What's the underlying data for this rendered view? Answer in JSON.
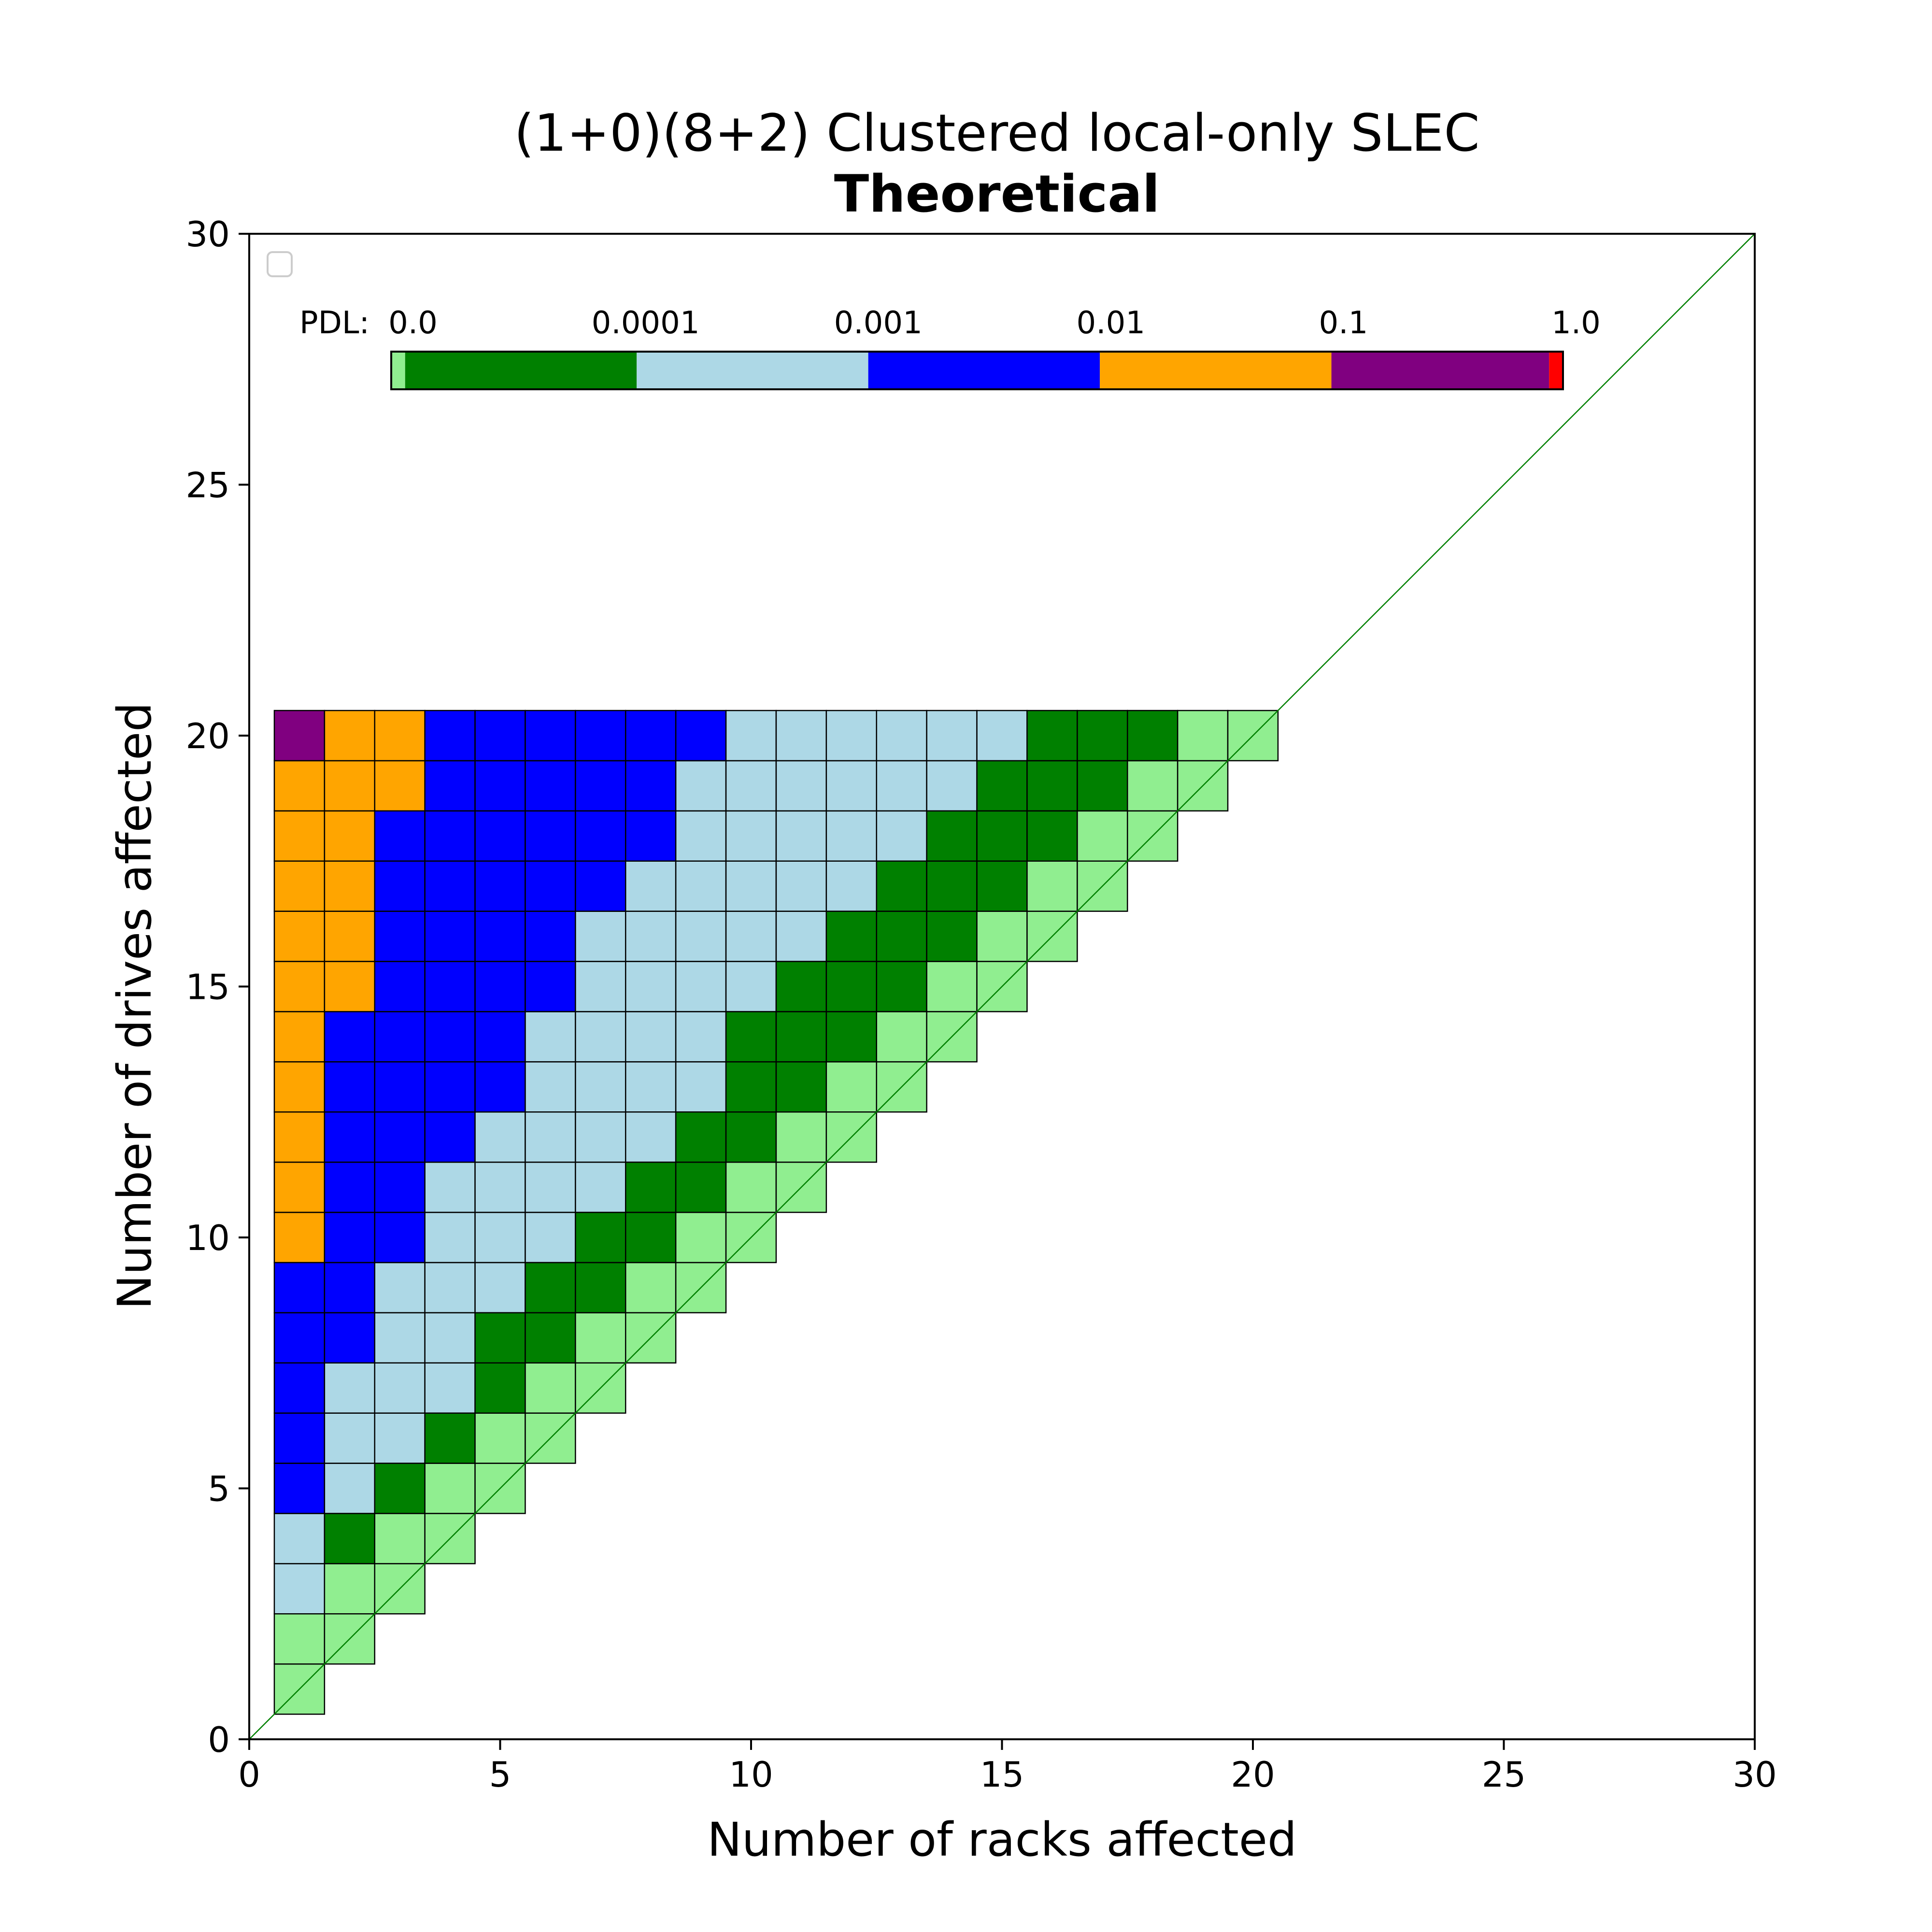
{
  "chart_data": {
    "type": "heatmap",
    "title": "(1+0)(8+2) Clustered local-only SLEC",
    "subtitle": "Theoretical",
    "xlabel": "Number of racks affected",
    "ylabel": "Number of drives affected",
    "xlim": [
      0,
      30
    ],
    "ylim": [
      0,
      30
    ],
    "x_ticks": [
      "0",
      "5",
      "10",
      "15",
      "20",
      "25",
      "30"
    ],
    "y_ticks": [
      "0",
      "5",
      "10",
      "15",
      "20",
      "25",
      "30"
    ],
    "grid": false,
    "diagonal_line": {
      "from": [
        0,
        0
      ],
      "to": [
        30,
        30
      ],
      "color": "#008000"
    },
    "legend": {
      "placement": "top-left",
      "entries": []
    },
    "colorbar": {
      "prefix": "PDL:",
      "labels": [
        "0.0",
        "0.0001",
        "0.001",
        "0.01",
        "0.1",
        "1.0"
      ],
      "segments": [
        {
          "category": "0",
          "color": "#90ee90",
          "weight": 0.06
        },
        {
          "category": "1",
          "color": "#008000",
          "weight": 1
        },
        {
          "category": "2",
          "color": "#add8e6",
          "weight": 1
        },
        {
          "category": "3",
          "color": "#0000ff",
          "weight": 1
        },
        {
          "category": "4",
          "color": "#ffa500",
          "weight": 1
        },
        {
          "category": "5",
          "color": "#800080",
          "weight": 0.94
        },
        {
          "category": "6",
          "color": "#ff0000",
          "weight": 0.06
        }
      ]
    },
    "category_colors": [
      "#90ee90",
      "#008000",
      "#add8e6",
      "#0000ff",
      "#ffa500",
      "#800080",
      "#ff0000"
    ],
    "rows": [
      {
        "drives": 1,
        "by_racks": [
          0
        ]
      },
      {
        "drives": 2,
        "by_racks": [
          0,
          0
        ]
      },
      {
        "drives": 3,
        "by_racks": [
          2,
          0,
          0
        ]
      },
      {
        "drives": 4,
        "by_racks": [
          2,
          1,
          0,
          0
        ]
      },
      {
        "drives": 5,
        "by_racks": [
          3,
          2,
          1,
          0,
          0
        ]
      },
      {
        "drives": 6,
        "by_racks": [
          3,
          2,
          2,
          1,
          0,
          0
        ]
      },
      {
        "drives": 7,
        "by_racks": [
          3,
          2,
          2,
          2,
          1,
          0,
          0
        ]
      },
      {
        "drives": 8,
        "by_racks": [
          3,
          3,
          2,
          2,
          1,
          1,
          0,
          0
        ]
      },
      {
        "drives": 9,
        "by_racks": [
          3,
          3,
          2,
          2,
          2,
          1,
          1,
          0,
          0
        ]
      },
      {
        "drives": 10,
        "by_racks": [
          4,
          3,
          3,
          2,
          2,
          2,
          1,
          1,
          0,
          0
        ]
      },
      {
        "drives": 11,
        "by_racks": [
          4,
          3,
          3,
          2,
          2,
          2,
          2,
          1,
          1,
          0,
          0
        ]
      },
      {
        "drives": 12,
        "by_racks": [
          4,
          3,
          3,
          3,
          2,
          2,
          2,
          2,
          1,
          1,
          0,
          0
        ]
      },
      {
        "drives": 13,
        "by_racks": [
          4,
          3,
          3,
          3,
          3,
          2,
          2,
          2,
          2,
          1,
          1,
          0,
          0
        ]
      },
      {
        "drives": 14,
        "by_racks": [
          4,
          3,
          3,
          3,
          3,
          2,
          2,
          2,
          2,
          1,
          1,
          1,
          0,
          0
        ]
      },
      {
        "drives": 15,
        "by_racks": [
          4,
          4,
          3,
          3,
          3,
          3,
          2,
          2,
          2,
          2,
          1,
          1,
          1,
          0,
          0
        ]
      },
      {
        "drives": 16,
        "by_racks": [
          4,
          4,
          3,
          3,
          3,
          3,
          2,
          2,
          2,
          2,
          2,
          1,
          1,
          1,
          0,
          0
        ]
      },
      {
        "drives": 17,
        "by_racks": [
          4,
          4,
          3,
          3,
          3,
          3,
          3,
          2,
          2,
          2,
          2,
          2,
          1,
          1,
          1,
          0,
          0
        ]
      },
      {
        "drives": 18,
        "by_racks": [
          4,
          4,
          3,
          3,
          3,
          3,
          3,
          3,
          2,
          2,
          2,
          2,
          2,
          1,
          1,
          1,
          0,
          0
        ]
      },
      {
        "drives": 19,
        "by_racks": [
          4,
          4,
          4,
          3,
          3,
          3,
          3,
          3,
          2,
          2,
          2,
          2,
          2,
          2,
          1,
          1,
          1,
          0,
          0
        ]
      },
      {
        "drives": 20,
        "by_racks": [
          5,
          4,
          4,
          3,
          3,
          3,
          3,
          3,
          3,
          2,
          2,
          2,
          2,
          2,
          2,
          1,
          1,
          1,
          0,
          0
        ]
      }
    ]
  }
}
